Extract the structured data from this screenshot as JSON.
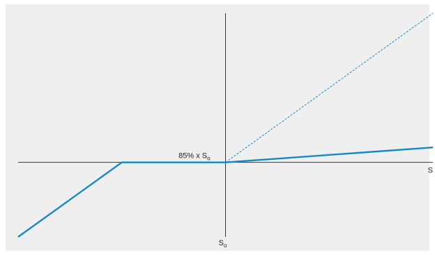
{
  "chart_data": {
    "type": "line",
    "title": "",
    "xlabel": "S",
    "ylabel": "",
    "xlim": [
      -1.0,
      1.0
    ],
    "ylim": [
      -0.35,
      0.7
    ],
    "origin_label_main": "S",
    "origin_label_sub": "o",
    "annotations": [
      {
        "main": "85% x S",
        "sub": "o",
        "x": -0.15,
        "y": 0
      }
    ],
    "series": [
      {
        "style": "solid",
        "color": "#1587c9",
        "points": [
          [
            -1.0,
            -0.35
          ],
          [
            -0.5,
            0
          ],
          [
            0,
            0
          ],
          [
            1.0,
            0.07
          ]
        ]
      },
      {
        "style": "dashed",
        "color": "#1587c9",
        "points": [
          [
            0,
            0
          ],
          [
            1.0,
            0.7
          ]
        ]
      }
    ]
  },
  "colors": {
    "axis": "#333333",
    "background": "#efefef"
  }
}
